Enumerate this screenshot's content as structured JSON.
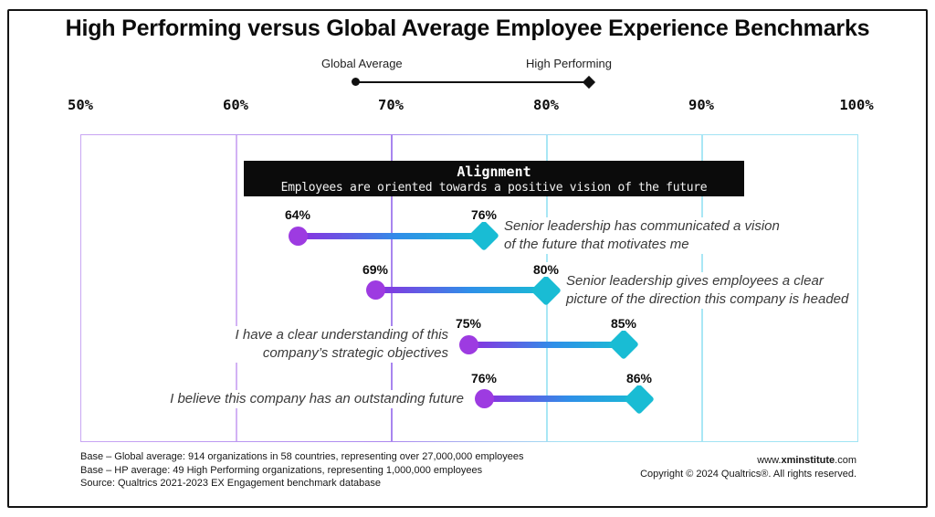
{
  "title": "High Performing versus Global Average Employee Experience Benchmarks",
  "legend": {
    "left_label": "Global Average",
    "right_label": "High Performing"
  },
  "category_banner": {
    "title": "Alignment",
    "subtitle": "Employees are oriented towards a positive vision of the future"
  },
  "chart_data": {
    "type": "scatter",
    "variant": "dumbbell",
    "title": "High Performing versus Global Average Employee Experience Benchmarks",
    "axis": {
      "min": 50,
      "max": 100,
      "tick_values": [
        50,
        60,
        70,
        80,
        90,
        100
      ],
      "tick_labels": [
        "50%",
        "60%",
        "70%",
        "80%",
        "90%",
        "100%"
      ],
      "grid": true,
      "legend_position": "top"
    },
    "series": [
      {
        "name": "Global Average",
        "marker": "circle",
        "color": "#9d3be1",
        "values": [
          64,
          69,
          75,
          76
        ]
      },
      {
        "name": "High Performing",
        "marker": "diamond",
        "color": "#19bcd4",
        "values": [
          76,
          80,
          85,
          86
        ]
      }
    ],
    "items": [
      {
        "label_lines": [
          "Senior leadership has communicated a vision",
          "of the future that motivates me"
        ],
        "label_side": "right",
        "global_average": 64,
        "high_performing": 76
      },
      {
        "label_lines": [
          "Senior leadership gives employees a clear",
          "picture of the direction this company is headed"
        ],
        "label_side": "right",
        "global_average": 69,
        "high_performing": 80
      },
      {
        "label_lines": [
          "I have a clear understanding of this",
          "company’s strategic objectives"
        ],
        "label_side": "left",
        "global_average": 75,
        "high_performing": 85
      },
      {
        "label_lines": [
          "I believe this company has an outstanding future"
        ],
        "label_side": "left",
        "global_average": 76,
        "high_performing": 86
      }
    ],
    "colors": {
      "global_average": "#9d3be1",
      "high_performing": "#19bcd4",
      "connector_gradient": [
        "#8d2ee0",
        "#2f8fe8",
        "#19bcd4"
      ],
      "gridlines": [
        "#d2b2f4",
        "#a885ef",
        "#a9e7f5",
        "#a9e7f5"
      ]
    }
  },
  "footer": {
    "left_lines": [
      "Base – Global average: 914 organizations in 58 countries, representing over 27,000,000 employees",
      "Base – HP average: 49 High Performing organizations,  representing 1,000,000 employees",
      "Source: Qualtrics 2021-2023 EX Engagement benchmark database"
    ],
    "website": {
      "prefix": "www.",
      "bold": "xminstitute",
      "suffix": ".com"
    },
    "copyright": "Copyright © 2024 Qualtrics®. All rights reserved."
  }
}
